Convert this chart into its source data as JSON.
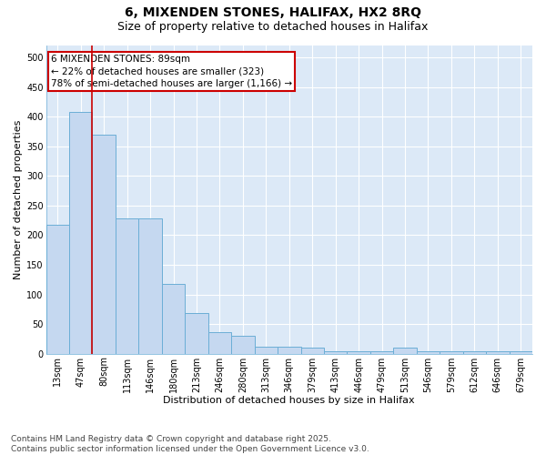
{
  "title_line1": "6, MIXENDEN STONES, HALIFAX, HX2 8RQ",
  "title_line2": "Size of property relative to detached houses in Halifax",
  "xlabel": "Distribution of detached houses by size in Halifax",
  "ylabel": "Number of detached properties",
  "categories": [
    "13sqm",
    "47sqm",
    "80sqm",
    "113sqm",
    "146sqm",
    "180sqm",
    "213sqm",
    "246sqm",
    "280sqm",
    "313sqm",
    "346sqm",
    "379sqm",
    "413sqm",
    "446sqm",
    "479sqm",
    "513sqm",
    "546sqm",
    "579sqm",
    "612sqm",
    "646sqm",
    "679sqm"
  ],
  "values": [
    218,
    408,
    370,
    228,
    228,
    118,
    68,
    37,
    30,
    12,
    12,
    10,
    4,
    4,
    4,
    10,
    4,
    4,
    4,
    4,
    4
  ],
  "bar_color": "#c5d8f0",
  "bar_edge_color": "#6baed6",
  "plot_bg_color": "#dce9f7",
  "grid_color": "#ffffff",
  "annotation_text_line1": "6 MIXENDEN STONES: 89sqm",
  "annotation_text_line2": "← 22% of detached houses are smaller (323)",
  "annotation_text_line3": "78% of semi-detached houses are larger (1,166) →",
  "annotation_box_edge_color": "#cc0000",
  "vline_color": "#cc0000",
  "vline_x_index": 2,
  "ylim": [
    0,
    520
  ],
  "yticks": [
    0,
    50,
    100,
    150,
    200,
    250,
    300,
    350,
    400,
    450,
    500
  ],
  "footnote_line1": "Contains HM Land Registry data © Crown copyright and database right 2025.",
  "footnote_line2": "Contains public sector information licensed under the Open Government Licence v3.0.",
  "title_fontsize": 10,
  "subtitle_fontsize": 9,
  "axis_label_fontsize": 8,
  "tick_fontsize": 7,
  "annotation_fontsize": 7.5,
  "footnote_fontsize": 6.5
}
